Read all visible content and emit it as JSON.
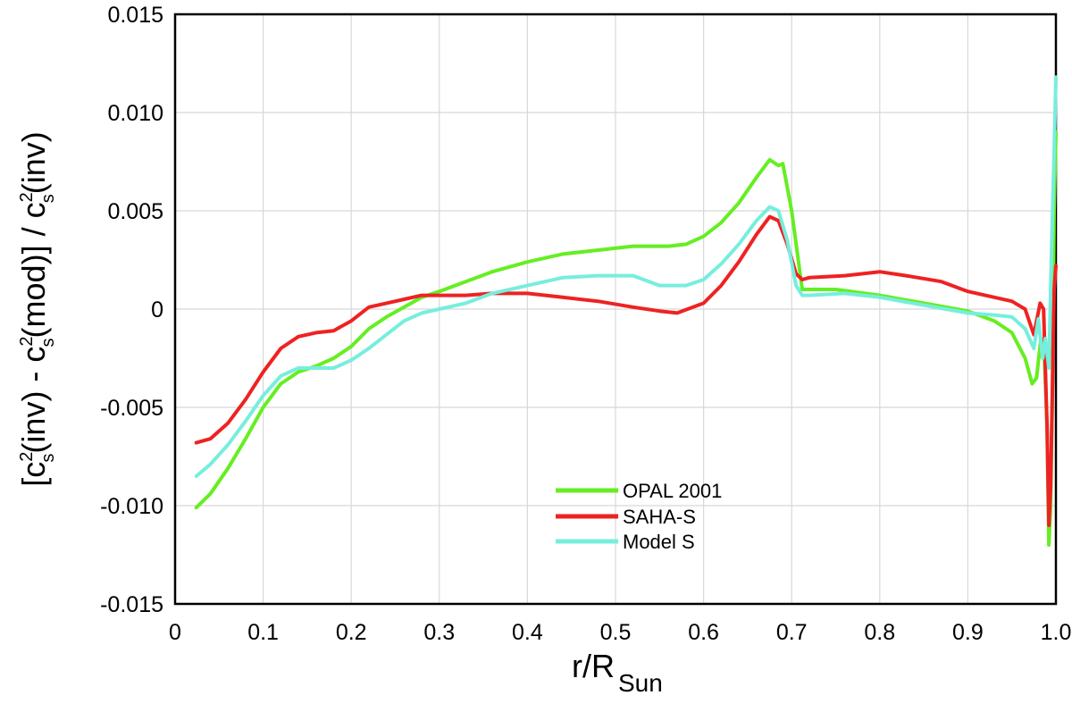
{
  "chart_data": {
    "type": "line",
    "title": "",
    "xlabel": "r/R",
    "xlabel_sub": "Sun",
    "ylabel_parts": {
      "open": "[c",
      "s": "s",
      "two": "2",
      "inv1": "(inv) - c",
      "mod": "(mod)] / c",
      "inv2": "(inv)"
    },
    "xlim": [
      0.0,
      1.0
    ],
    "ylim": [
      -0.015,
      0.015
    ],
    "grid": true,
    "legend_position": "lower-center",
    "x_ticks": [
      {
        "value": 0.0,
        "label": "0"
      },
      {
        "value": 0.1,
        "label": "0.1"
      },
      {
        "value": 0.2,
        "label": "0.2"
      },
      {
        "value": 0.3,
        "label": "0.3"
      },
      {
        "value": 0.4,
        "label": "0.4"
      },
      {
        "value": 0.5,
        "label": "0.5"
      },
      {
        "value": 0.6,
        "label": "0.6"
      },
      {
        "value": 0.7,
        "label": "0.7"
      },
      {
        "value": 0.8,
        "label": "0.8"
      },
      {
        "value": 0.9,
        "label": "0.9"
      },
      {
        "value": 1.0,
        "label": "1.0"
      }
    ],
    "y_ticks": [
      {
        "value": 0.015,
        "label": "0.015"
      },
      {
        "value": 0.01,
        "label": "0.010"
      },
      {
        "value": 0.005,
        "label": "0.005"
      },
      {
        "value": 0.0,
        "label": "0"
      },
      {
        "value": -0.005,
        "label": "-0.005"
      },
      {
        "value": -0.01,
        "label": "-0.010"
      },
      {
        "value": -0.015,
        "label": "-0.015"
      }
    ],
    "series": [
      {
        "name": "OPAL 2001",
        "color": "#66ee22",
        "points": [
          [
            0.024,
            -0.0101
          ],
          [
            0.04,
            -0.0094
          ],
          [
            0.06,
            -0.0081
          ],
          [
            0.08,
            -0.0066
          ],
          [
            0.1,
            -0.005
          ],
          [
            0.12,
            -0.0038
          ],
          [
            0.14,
            -0.0032
          ],
          [
            0.16,
            -0.0029
          ],
          [
            0.18,
            -0.0025
          ],
          [
            0.2,
            -0.0019
          ],
          [
            0.22,
            -0.001
          ],
          [
            0.24,
            -0.0004
          ],
          [
            0.26,
            0.0001
          ],
          [
            0.28,
            0.0006
          ],
          [
            0.3,
            0.0009
          ],
          [
            0.33,
            0.0014
          ],
          [
            0.36,
            0.0019
          ],
          [
            0.4,
            0.0024
          ],
          [
            0.44,
            0.0028
          ],
          [
            0.48,
            0.003
          ],
          [
            0.52,
            0.0032
          ],
          [
            0.56,
            0.0032
          ],
          [
            0.58,
            0.0033
          ],
          [
            0.6,
            0.0037
          ],
          [
            0.62,
            0.0044
          ],
          [
            0.64,
            0.0054
          ],
          [
            0.66,
            0.0067
          ],
          [
            0.675,
            0.0076
          ],
          [
            0.685,
            0.0073
          ],
          [
            0.69,
            0.0074
          ],
          [
            0.7,
            0.005
          ],
          [
            0.712,
            0.001
          ],
          [
            0.72,
            0.001
          ],
          [
            0.75,
            0.001
          ],
          [
            0.8,
            0.0007
          ],
          [
            0.85,
            0.0003
          ],
          [
            0.9,
            -0.0001
          ],
          [
            0.93,
            -0.0006
          ],
          [
            0.95,
            -0.0012
          ],
          [
            0.965,
            -0.0025
          ],
          [
            0.973,
            -0.0038
          ],
          [
            0.978,
            -0.0035
          ],
          [
            0.983,
            -0.0015
          ],
          [
            0.987,
            -0.0025
          ],
          [
            0.99,
            -0.006
          ],
          [
            0.992,
            -0.012
          ],
          [
            0.994,
            -0.01
          ],
          [
            0.996,
            -0.004
          ],
          [
            0.998,
            0.005
          ],
          [
            1.0,
            0.009
          ]
        ]
      },
      {
        "name": "SAHA-S",
        "color": "#ee2222",
        "points": [
          [
            0.024,
            -0.0068
          ],
          [
            0.04,
            -0.0066
          ],
          [
            0.06,
            -0.0058
          ],
          [
            0.08,
            -0.0046
          ],
          [
            0.1,
            -0.0032
          ],
          [
            0.12,
            -0.002
          ],
          [
            0.14,
            -0.0014
          ],
          [
            0.16,
            -0.0012
          ],
          [
            0.18,
            -0.0011
          ],
          [
            0.2,
            -0.0006
          ],
          [
            0.22,
            0.0001
          ],
          [
            0.24,
            0.0003
          ],
          [
            0.26,
            0.0005
          ],
          [
            0.28,
            0.0007
          ],
          [
            0.3,
            0.0007
          ],
          [
            0.33,
            0.0007
          ],
          [
            0.36,
            0.0008
          ],
          [
            0.4,
            0.0008
          ],
          [
            0.44,
            0.0006
          ],
          [
            0.48,
            0.0004
          ],
          [
            0.52,
            0.0001
          ],
          [
            0.55,
            -0.0001
          ],
          [
            0.57,
            -0.0002
          ],
          [
            0.6,
            0.0003
          ],
          [
            0.62,
            0.0012
          ],
          [
            0.64,
            0.0024
          ],
          [
            0.66,
            0.0038
          ],
          [
            0.675,
            0.0047
          ],
          [
            0.685,
            0.0045
          ],
          [
            0.695,
            0.0033
          ],
          [
            0.705,
            0.0018
          ],
          [
            0.712,
            0.0015
          ],
          [
            0.72,
            0.0016
          ],
          [
            0.76,
            0.0017
          ],
          [
            0.8,
            0.0019
          ],
          [
            0.83,
            0.0017
          ],
          [
            0.87,
            0.0014
          ],
          [
            0.9,
            0.0009
          ],
          [
            0.93,
            0.0006
          ],
          [
            0.95,
            0.0004
          ],
          [
            0.965,
            0.0
          ],
          [
            0.975,
            -0.0013
          ],
          [
            0.982,
            0.0003
          ],
          [
            0.986,
            0.0
          ],
          [
            0.99,
            -0.006
          ],
          [
            0.992,
            -0.011
          ],
          [
            0.994,
            -0.009
          ],
          [
            0.996,
            -0.004
          ],
          [
            0.998,
            0.001
          ],
          [
            1.0,
            0.0022
          ]
        ]
      },
      {
        "name": "Model S",
        "color": "#77eedd",
        "points": [
          [
            0.024,
            -0.0085
          ],
          [
            0.04,
            -0.0079
          ],
          [
            0.06,
            -0.0069
          ],
          [
            0.08,
            -0.0057
          ],
          [
            0.1,
            -0.0044
          ],
          [
            0.12,
            -0.0034
          ],
          [
            0.14,
            -0.003
          ],
          [
            0.16,
            -0.003
          ],
          [
            0.18,
            -0.003
          ],
          [
            0.2,
            -0.0026
          ],
          [
            0.22,
            -0.002
          ],
          [
            0.24,
            -0.0013
          ],
          [
            0.26,
            -0.0006
          ],
          [
            0.28,
            -0.0002
          ],
          [
            0.3,
            0.0
          ],
          [
            0.33,
            0.0003
          ],
          [
            0.36,
            0.0008
          ],
          [
            0.4,
            0.0012
          ],
          [
            0.44,
            0.0016
          ],
          [
            0.48,
            0.0017
          ],
          [
            0.52,
            0.0017
          ],
          [
            0.55,
            0.0012
          ],
          [
            0.58,
            0.0012
          ],
          [
            0.6,
            0.0015
          ],
          [
            0.62,
            0.0023
          ],
          [
            0.64,
            0.0033
          ],
          [
            0.66,
            0.0045
          ],
          [
            0.675,
            0.0052
          ],
          [
            0.685,
            0.005
          ],
          [
            0.695,
            0.0035
          ],
          [
            0.705,
            0.0012
          ],
          [
            0.712,
            0.0007
          ],
          [
            0.72,
            0.0007
          ],
          [
            0.76,
            0.0008
          ],
          [
            0.8,
            0.0006
          ],
          [
            0.85,
            0.0002
          ],
          [
            0.9,
            -0.0002
          ],
          [
            0.93,
            -0.0003
          ],
          [
            0.95,
            -0.0004
          ],
          [
            0.965,
            -0.001
          ],
          [
            0.975,
            -0.002
          ],
          [
            0.98,
            -0.0005
          ],
          [
            0.985,
            -0.0025
          ],
          [
            0.988,
            -0.0015
          ],
          [
            0.992,
            -0.003
          ],
          [
            0.995,
            0.003
          ],
          [
            0.998,
            0.008
          ],
          [
            1.0,
            0.0118
          ]
        ]
      }
    ]
  }
}
